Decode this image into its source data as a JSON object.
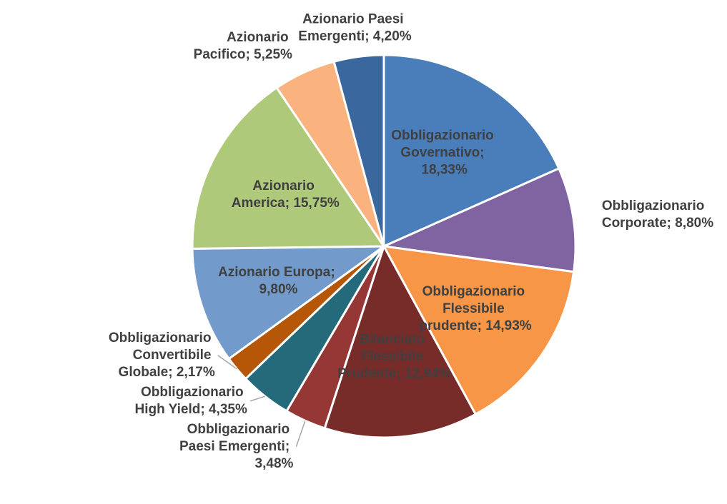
{
  "chart_data": {
    "type": "pie",
    "categories": [
      "Obbligazionario Governativo",
      "Obbligazionario Corporate",
      "Obbligazionario Flessibile prudente",
      "Bilanciato Flessibile Prudente",
      "Obbligazionario Paesi Emergenti",
      "Obbligazionario High Yield",
      "Obbligazionario Convertibile Globale",
      "Azionario Europa",
      "Azionario America",
      "Azionario Pacifico",
      "Azionario Paesi Emergenti"
    ],
    "values": [
      18.33,
      8.8,
      14.93,
      12.94,
      3.48,
      4.35,
      2.17,
      9.8,
      15.75,
      5.25,
      4.2
    ],
    "value_labels": [
      "18,33%",
      "8,80%",
      "14,93%",
      "12,94%",
      "3,48%",
      "4,35%",
      "2,17%",
      "9,80%",
      "15,75%",
      "5,25%",
      "4,20%"
    ],
    "label_separator": "; ",
    "colors": [
      "#4a7ebb",
      "#8064a2",
      "#f79646",
      "#772c2a",
      "#953735",
      "#246a7a",
      "#b65708",
      "#729aca",
      "#afc97a",
      "#fab37e",
      "#3a679e"
    ]
  }
}
